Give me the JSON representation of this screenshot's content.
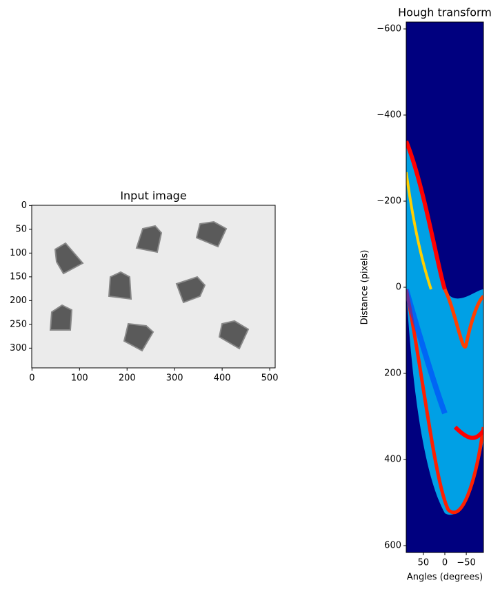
{
  "chart_data": [
    {
      "type": "image",
      "title": "Input image",
      "xlim": [
        -0.5,
        511.5
      ],
      "ylim": [
        341.5,
        -0.5
      ],
      "xticks": [
        0,
        100,
        200,
        300,
        400,
        500
      ],
      "yticks": [
        0,
        50,
        100,
        150,
        200,
        250,
        300
      ]
    },
    {
      "type": "image",
      "title": "Hough transform",
      "x_label": "Angles (degrees)",
      "y_label": "Distance (pixels)",
      "xlim": [
        90,
        -90
      ],
      "ylim": [
        616,
        -616
      ],
      "xticks": [
        50,
        0,
        {
          "value": -50,
          "label": "−50"
        }
      ],
      "yticks": [
        {
          "value": -600,
          "label": "−600"
        },
        {
          "value": -400,
          "label": "−400"
        },
        {
          "value": -200,
          "label": "−200"
        },
        0,
        200,
        400,
        600
      ]
    }
  ]
}
